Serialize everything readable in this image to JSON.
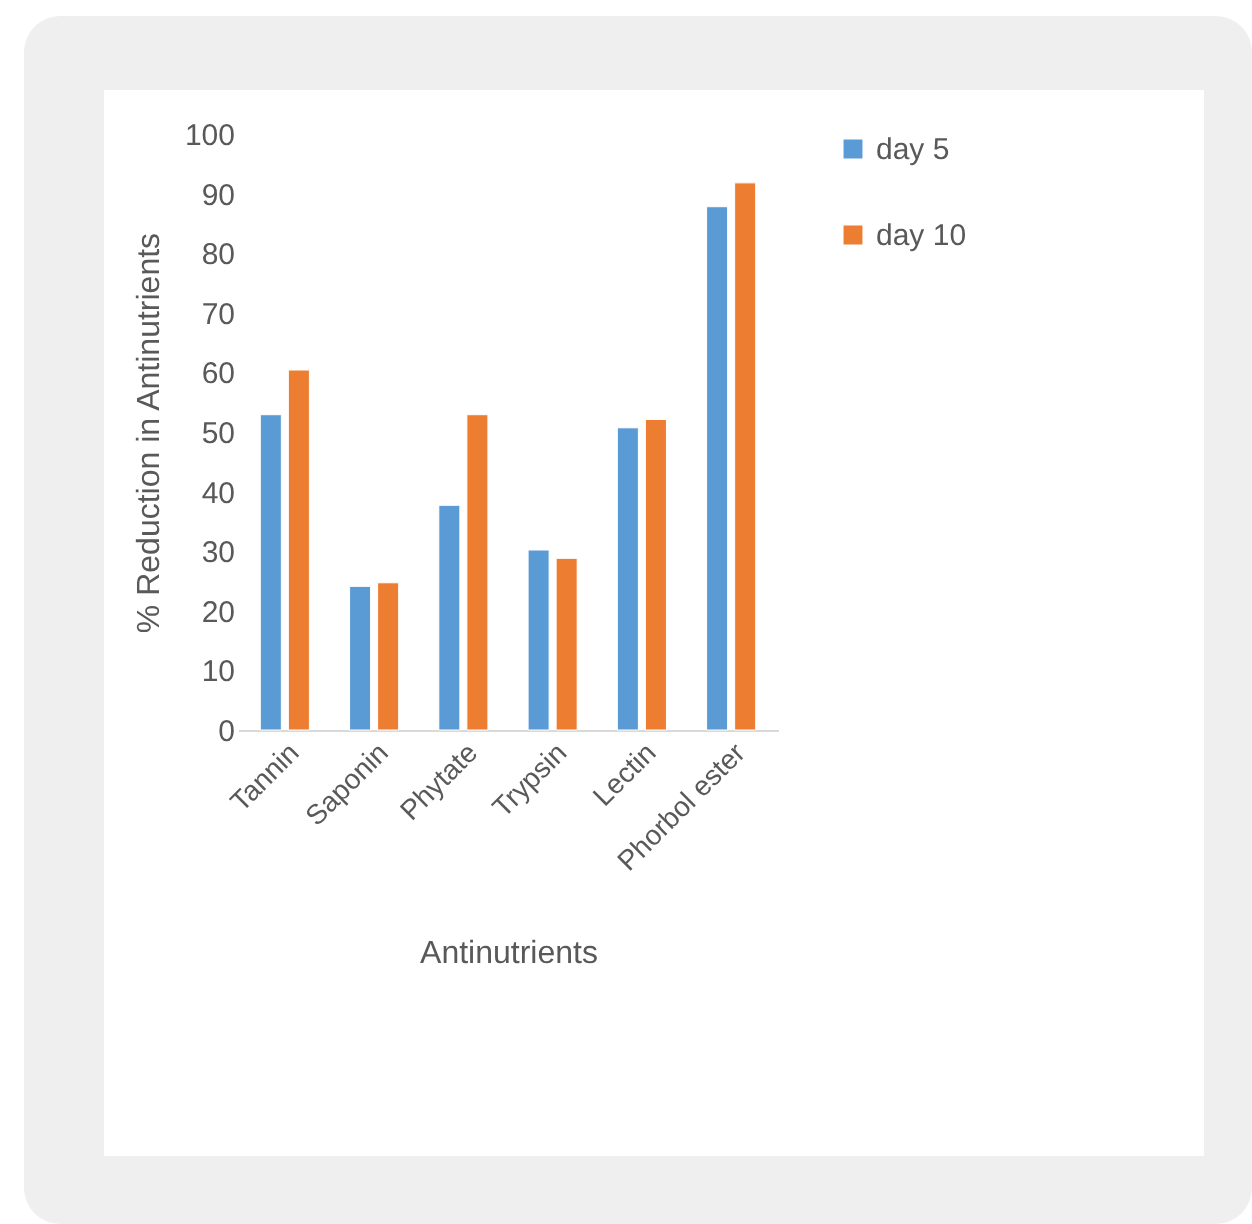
{
  "chart_data": {
    "type": "bar",
    "xlabel": "Antinutrients",
    "ylabel": "% Reduction in Antinutrients",
    "categories": [
      "Tannin",
      "Saponin",
      "Phytate",
      "Trypsin",
      "Lectin",
      "Phorbol ester"
    ],
    "series": [
      {
        "name": "day 5",
        "color": "#5b9bd5",
        "values": [
          52.9,
          24.1,
          37.7,
          30.2,
          50.7,
          87.8
        ]
      },
      {
        "name": "day 10",
        "color": "#ed7d31",
        "values": [
          60.4,
          24.7,
          52.9,
          28.8,
          52.1,
          91.8
        ]
      }
    ],
    "ylim": [
      0,
      100
    ],
    "yticks": [
      0,
      10,
      20,
      30,
      40,
      50,
      60,
      70,
      80,
      90,
      100
    ],
    "grid": false,
    "legend": "right"
  }
}
